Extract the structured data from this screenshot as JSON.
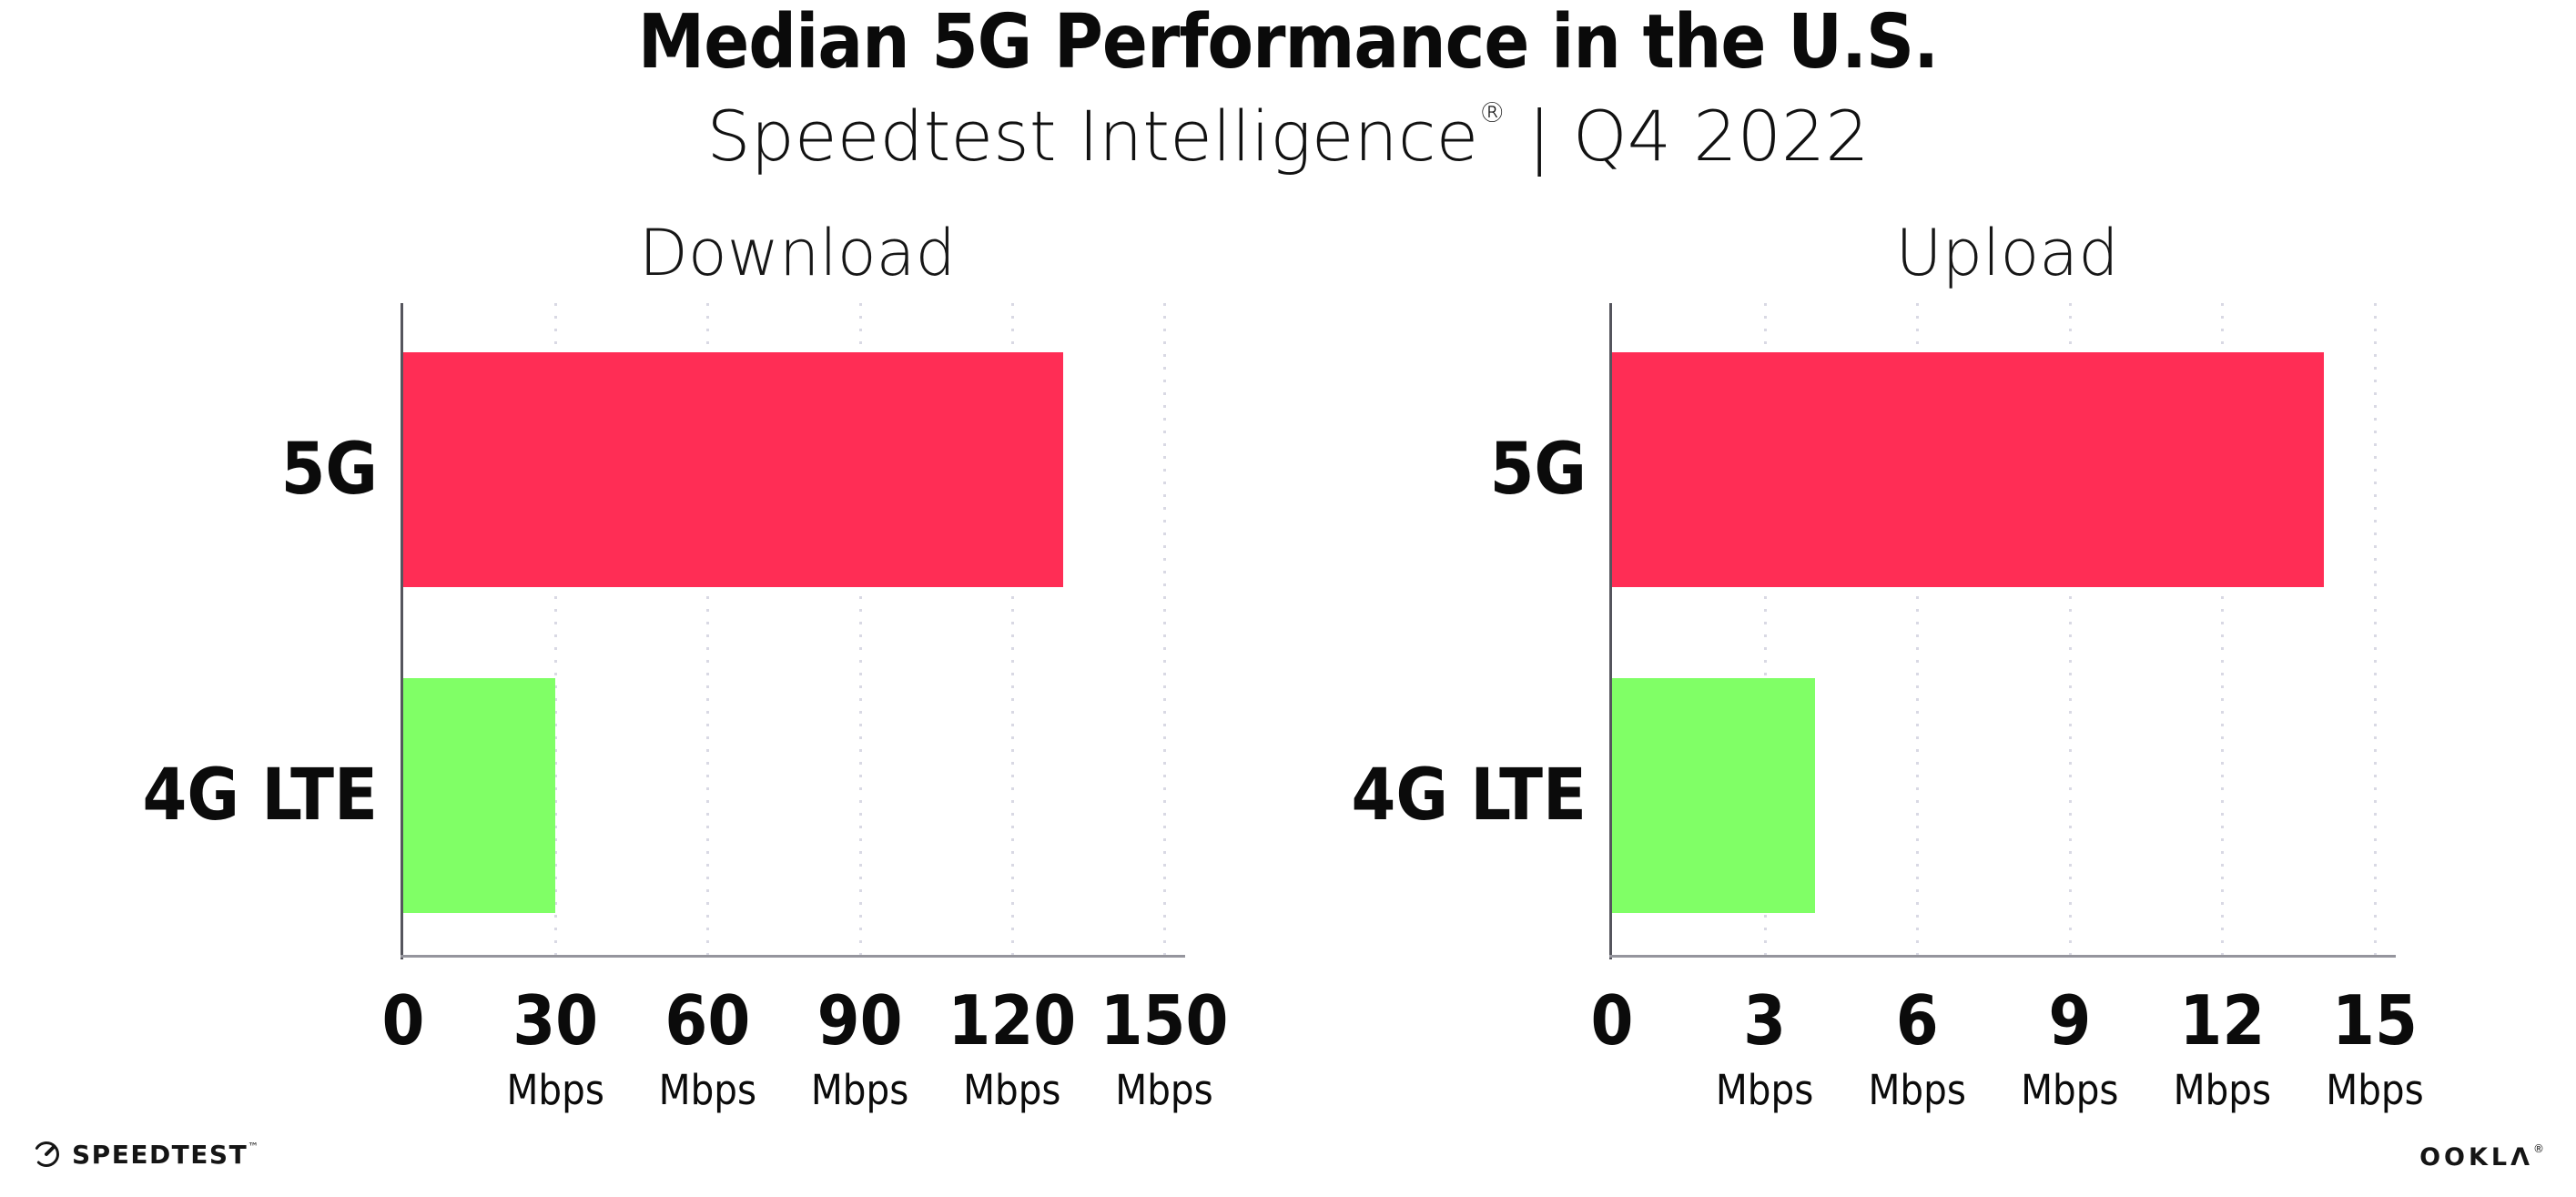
{
  "header": {
    "title": "Median 5G Performance in the U.S.",
    "subtitle": {
      "brand": "Speedtest Intelligence",
      "registered": "®",
      "separator": "|",
      "period": "Q4 2022"
    }
  },
  "chart_data": [
    {
      "type": "bar",
      "orientation": "horizontal",
      "title": "Download",
      "categories": [
        "5G",
        "4G LTE"
      ],
      "values": [
        130,
        30
      ],
      "unit": "Mbps",
      "xlim": [
        0,
        150
      ],
      "ticks": [
        0,
        30,
        60,
        90,
        120,
        150
      ],
      "tick_labels": [
        "0",
        "30",
        "60",
        "90",
        "120",
        "150"
      ],
      "bar_colors": [
        "#ff2d55",
        "#80ff66"
      ],
      "grid": "dotted-vertical",
      "legend": "none"
    },
    {
      "type": "bar",
      "orientation": "horizontal",
      "title": "Upload",
      "categories": [
        "5G",
        "4G LTE"
      ],
      "values": [
        14,
        4
      ],
      "unit": "Mbps",
      "xlim": [
        0,
        15
      ],
      "ticks": [
        0,
        3,
        6,
        9,
        12,
        15
      ],
      "tick_labels": [
        "0",
        "3",
        "6",
        "9",
        "12",
        "15"
      ],
      "bar_colors": [
        "#ff2d55",
        "#80ff66"
      ],
      "grid": "dotted-vertical",
      "legend": "none"
    }
  ],
  "colors": {
    "bar_5g": "#ff2d55",
    "bar_4g_lte": "#80ff66",
    "gridline": "#d9d9e4",
    "y_axis": "#55555d",
    "x_axis": "#95959d",
    "text": "#0b0b0b",
    "background": "#ffffff"
  },
  "footer": {
    "speedtest_label": "SPEEDTEST",
    "speedtest_mark": "™",
    "ookla_label": "OOKLΛ",
    "ookla_mark": "®"
  }
}
